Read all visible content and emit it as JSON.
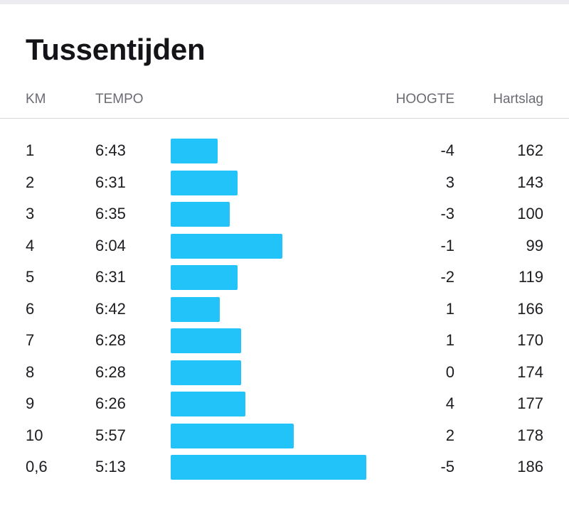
{
  "title": "Tussentijden",
  "headers": {
    "km": "KM",
    "tempo": "TEMPO",
    "hoogte": "HOOGTE",
    "hartslag": "Hartslag"
  },
  "bar_color": "#22c3f8",
  "splits": [
    {
      "km": "1",
      "tempo": "6:43",
      "hoogte": "-4",
      "hartslag": "162",
      "speed_fraction": 0.24
    },
    {
      "km": "2",
      "tempo": "6:31",
      "hoogte": "3",
      "hartslag": "143",
      "speed_fraction": 0.34
    },
    {
      "km": "3",
      "tempo": "6:35",
      "hoogte": "-3",
      "hartslag": "100",
      "speed_fraction": 0.3
    },
    {
      "km": "4",
      "tempo": "6:04",
      "hoogte": "-1",
      "hartslag": "99",
      "speed_fraction": 0.57
    },
    {
      "km": "5",
      "tempo": "6:31",
      "hoogte": "-2",
      "hartslag": "119",
      "speed_fraction": 0.34
    },
    {
      "km": "6",
      "tempo": "6:42",
      "hoogte": "1",
      "hartslag": "166",
      "speed_fraction": 0.25
    },
    {
      "km": "7",
      "tempo": "6:28",
      "hoogte": "1",
      "hartslag": "170",
      "speed_fraction": 0.36
    },
    {
      "km": "8",
      "tempo": "6:28",
      "hoogte": "0",
      "hartslag": "174",
      "speed_fraction": 0.36
    },
    {
      "km": "9",
      "tempo": "6:26",
      "hoogte": "4",
      "hartslag": "177",
      "speed_fraction": 0.38
    },
    {
      "km": "10",
      "tempo": "5:57",
      "hoogte": "2",
      "hartslag": "178",
      "speed_fraction": 0.63
    },
    {
      "km": "0,6",
      "tempo": "5:13",
      "hoogte": "-5",
      "hartslag": "186",
      "speed_fraction": 1.0
    }
  ]
}
